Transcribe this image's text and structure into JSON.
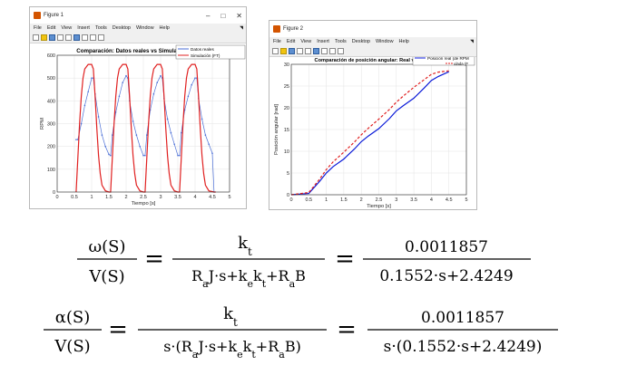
{
  "figure1": {
    "window_title": "Figure 1",
    "menu": [
      "File",
      "Edit",
      "View",
      "Insert",
      "Tools",
      "Desktop",
      "Window",
      "Help"
    ],
    "chart_data": {
      "type": "line",
      "title": "Comparación: Datos reales vs Simulación",
      "xlabel": "Tiempo [s]",
      "ylabel": "RPM",
      "xlim": [
        0,
        5
      ],
      "ylim": [
        0,
        600
      ],
      "xticks": [
        "0",
        "0.5",
        "1",
        "1.5",
        "2",
        "2.5",
        "3",
        "3.5",
        "4",
        "4.5",
        "5"
      ],
      "yticks": [
        "0",
        "100",
        "200",
        "300",
        "400",
        "500",
        "600"
      ],
      "legend_position": "top-right",
      "series": [
        {
          "name": "Datos reales",
          "color": "#4a6ed6",
          "x": [
            0.55,
            0.6,
            0.7,
            0.8,
            0.9,
            1.0,
            1.05,
            1.1,
            1.2,
            1.3,
            1.4,
            1.5,
            1.55,
            1.6,
            1.7,
            1.8,
            1.9,
            2.0,
            2.05,
            2.1,
            2.2,
            2.3,
            2.4,
            2.5,
            2.55,
            2.6,
            2.7,
            2.8,
            2.9,
            3.0,
            3.05,
            3.1,
            3.2,
            3.3,
            3.4,
            3.5,
            3.55,
            3.6,
            3.7,
            3.8,
            3.9,
            4.0,
            4.05,
            4.1,
            4.2,
            4.3,
            4.4,
            4.5,
            4.55
          ],
          "y": [
            230,
            230,
            300,
            380,
            440,
            500,
            500,
            430,
            330,
            250,
            200,
            165,
            160,
            250,
            350,
            420,
            480,
            510,
            500,
            400,
            310,
            250,
            200,
            160,
            160,
            250,
            360,
            430,
            480,
            510,
            500,
            410,
            320,
            260,
            210,
            160,
            160,
            260,
            360,
            420,
            470,
            500,
            500,
            410,
            320,
            250,
            210,
            170,
            0
          ]
        },
        {
          "name": "Simulación (FT)",
          "color": "#e02020",
          "x": [
            0.55,
            0.6,
            0.65,
            0.7,
            0.75,
            0.8,
            0.9,
            1.0,
            1.05,
            1.1,
            1.15,
            1.2,
            1.25,
            1.3,
            1.4,
            1.5,
            1.55,
            1.6,
            1.65,
            1.7,
            1.75,
            1.8,
            1.9,
            2.0,
            2.05,
            2.1,
            2.15,
            2.2,
            2.25,
            2.3,
            2.4,
            2.5,
            2.55,
            2.6,
            2.65,
            2.7,
            2.75,
            2.8,
            2.9,
            3.0,
            3.05,
            3.1,
            3.15,
            3.2,
            3.25,
            3.3,
            3.4,
            3.5,
            3.55,
            3.6,
            3.65,
            3.7,
            3.75,
            3.8,
            3.9,
            4.0,
            4.05,
            4.1,
            4.15,
            4.2,
            4.25,
            4.3,
            4.4,
            4.55,
            4.6
          ],
          "y": [
            0,
            150,
            300,
            420,
            500,
            540,
            560,
            560,
            540,
            420,
            280,
            160,
            80,
            30,
            5,
            0,
            0,
            150,
            300,
            420,
            500,
            540,
            560,
            560,
            540,
            420,
            280,
            160,
            80,
            30,
            5,
            0,
            0,
            150,
            300,
            420,
            500,
            540,
            560,
            560,
            540,
            420,
            280,
            160,
            80,
            30,
            5,
            0,
            0,
            150,
            300,
            420,
            500,
            540,
            560,
            560,
            540,
            420,
            280,
            160,
            80,
            30,
            5,
            0,
            0
          ]
        }
      ]
    }
  },
  "figure2": {
    "window_title": "Figure 2",
    "menu": [
      "File",
      "Edit",
      "View",
      "Insert",
      "Tools",
      "Desktop",
      "Window",
      "Help"
    ],
    "chart_data": {
      "type": "line",
      "title": "Comparación de posición angular: Real vs Simul",
      "xlabel": "Tiempo [s]",
      "ylabel": "Posición angular [rad]",
      "xlim": [
        0,
        5
      ],
      "ylim": [
        0,
        30
      ],
      "xticks": [
        "0",
        "0.5",
        "1",
        "1.5",
        "2",
        "2.5",
        "3",
        "3.5",
        "4",
        "4.5",
        "5"
      ],
      "yticks": [
        "0",
        "5",
        "10",
        "15",
        "20",
        "25",
        "30"
      ],
      "legend_position": "top-right",
      "legend_visible_text": [
        "Posición real (de RPM",
        "ulada (F"
      ],
      "series": [
        {
          "name": "Posición real (de RPM",
          "color": "#0a1ad8",
          "style": "solid",
          "x": [
            0,
            0.5,
            0.6,
            0.8,
            1.0,
            1.2,
            1.5,
            1.8,
            2.0,
            2.2,
            2.5,
            2.8,
            3.0,
            3.2,
            3.5,
            3.8,
            4.0,
            4.2,
            4.5
          ],
          "y": [
            0,
            0.3,
            1.2,
            3.0,
            5.0,
            6.5,
            8.2,
            10.5,
            12.2,
            13.5,
            15.2,
            17.5,
            19.3,
            20.5,
            22.2,
            24.6,
            26.3,
            27.2,
            28.3
          ]
        },
        {
          "name": "ulada (F",
          "color": "#e02020",
          "style": "dashed",
          "x": [
            0,
            0.5,
            0.6,
            0.8,
            1.0,
            1.2,
            1.5,
            1.8,
            2.0,
            2.2,
            2.5,
            2.8,
            3.0,
            3.2,
            3.5,
            3.8,
            4.0,
            4.2,
            4.5
          ],
          "y": [
            0,
            0.5,
            1.5,
            3.5,
            5.8,
            7.6,
            9.8,
            12.1,
            13.8,
            15.3,
            17.4,
            19.6,
            21.3,
            22.7,
            24.7,
            26.5,
            27.7,
            28.2,
            28.5
          ]
        }
      ]
    }
  },
  "equation1": {
    "lhs_num": "ω(S)",
    "lhs_den": "V(S)",
    "mid_num": "k",
    "mid_num_sub": "t",
    "mid_den": [
      "R",
      "a",
      "J·s+k",
      "e",
      "k",
      "t",
      "+R",
      "a",
      "B"
    ],
    "rhs_num": "0.0011857",
    "rhs_den": "0.1552·s+2.4249",
    "eq_sign": "="
  },
  "equation2": {
    "lhs_num": "α(S)",
    "lhs_den": "V(S)",
    "mid_num": "k",
    "mid_num_sub": "t",
    "mid_den": [
      "s·(R",
      "a",
      "J·s+k",
      "e",
      "k",
      "t",
      "+R",
      "a",
      "B)"
    ],
    "rhs_num": "0.0011857",
    "rhs_den": "s·(0.1552·s+2.4249)",
    "eq_sign": "="
  }
}
